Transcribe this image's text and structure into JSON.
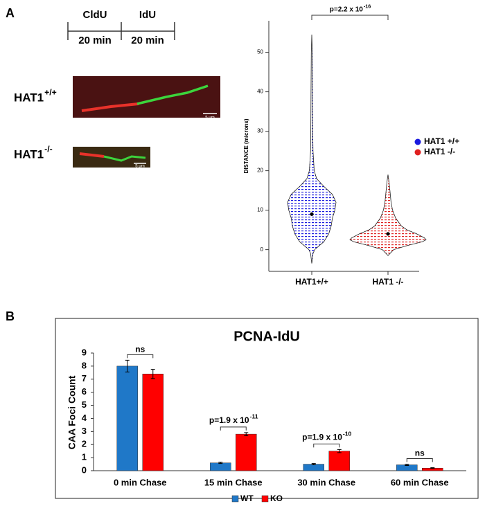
{
  "panels": [
    "A",
    "B"
  ],
  "timeline": {
    "labels": [
      "CldU",
      "IdU"
    ],
    "durations": [
      "20 min",
      "20 min"
    ]
  },
  "images": [
    {
      "label": "HAT1",
      "sup": "+/+",
      "scale": "5 μm"
    },
    {
      "label": "HAT1",
      "sup": "-/-",
      "scale": "5 μm"
    }
  ],
  "chart_data": [
    {
      "type": "violin",
      "y_label": "DISTANCE (microns)",
      "categories": [
        "HAT1+/+",
        "HAT1 -/-"
      ],
      "ylim": [
        -5.5,
        58
      ],
      "yticks": [
        0,
        10,
        20,
        30,
        40,
        50
      ],
      "annotation": {
        "text": "p=2.2 x 10",
        "sup": "-16"
      },
      "series": [
        {
          "name": "HAT1 +/+",
          "color": "#1a1adf",
          "mean": 9,
          "density_y": [
            -3.5,
            -1,
            0,
            2,
            4,
            6,
            8,
            10,
            12,
            14,
            16,
            18,
            20,
            25,
            30,
            40,
            50,
            54.5
          ],
          "density": [
            0,
            0.05,
            0.12,
            0.5,
            0.7,
            0.8,
            0.85,
            0.95,
            1,
            0.85,
            0.5,
            0.2,
            0.1,
            0.05,
            0.04,
            0.03,
            0.02,
            0
          ]
        },
        {
          "name": "HAT1 -/-",
          "color": "#e02020",
          "mean": 4,
          "density_y": [
            -1.5,
            0,
            1,
            2,
            2.5,
            3,
            4,
            5,
            6,
            8,
            10,
            12,
            15,
            17,
            19
          ],
          "density": [
            0,
            0.15,
            0.5,
            0.9,
            1,
            0.95,
            0.75,
            0.5,
            0.35,
            0.2,
            0.12,
            0.08,
            0.05,
            0.03,
            0
          ]
        }
      ]
    },
    {
      "type": "bar",
      "title": "PCNA-IdU",
      "y_label": "CAA Foci Count",
      "categories": [
        "0 min Chase",
        "15 min Chase",
        "30 min Chase",
        "60 min Chase"
      ],
      "ylim": [
        0,
        9
      ],
      "yticks": [
        0,
        1,
        2,
        3,
        4,
        5,
        6,
        7,
        8,
        9
      ],
      "series": [
        {
          "name": "WT",
          "color": "#1f78c8",
          "values": [
            8.0,
            0.6,
            0.5,
            0.45
          ],
          "errors": [
            0.45,
            0.05,
            0.05,
            0.05
          ]
        },
        {
          "name": "KO",
          "color": "#ff0000",
          "values": [
            7.4,
            2.8,
            1.5,
            0.2
          ],
          "errors": [
            0.35,
            0.12,
            0.12,
            0.03
          ]
        }
      ],
      "annotations": [
        {
          "category": 0,
          "text": "ns"
        },
        {
          "category": 1,
          "text": "p=1.9 x 10",
          "sup": "-11"
        },
        {
          "category": 2,
          "text": "p=1.9 x 10",
          "sup": "-10"
        },
        {
          "category": 3,
          "text": "ns"
        }
      ]
    }
  ]
}
